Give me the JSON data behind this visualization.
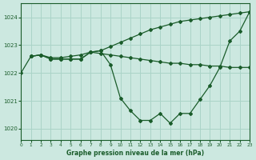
{
  "title": "Graphe pression niveau de la mer (hPa)",
  "background_color": "#cce8e0",
  "grid_color": "#aad4c8",
  "line_color": "#1a5c2a",
  "xlim": [
    0,
    23
  ],
  "ylim": [
    1019.6,
    1024.5
  ],
  "yticks": [
    1020,
    1021,
    1022,
    1023,
    1024
  ],
  "xticks": [
    0,
    1,
    2,
    3,
    4,
    5,
    6,
    7,
    8,
    9,
    10,
    11,
    12,
    13,
    14,
    15,
    16,
    17,
    18,
    19,
    20,
    21,
    22,
    23
  ],
  "series": [
    {
      "x": [
        0,
        1,
        2,
        3,
        4,
        5,
        6,
        7,
        8,
        9,
        10,
        11,
        12,
        13,
        14,
        15,
        16,
        17,
        18,
        19,
        20,
        21,
        22,
        23
      ],
      "y": [
        1022.0,
        1022.6,
        1022.65,
        1022.5,
        1022.5,
        1022.5,
        1022.5,
        1022.75,
        1022.8,
        1022.3,
        1021.1,
        1020.65,
        1020.3,
        1020.3,
        1020.55,
        1020.2,
        1020.55,
        1020.55,
        1021.05,
        1021.55,
        1022.2,
        1023.15,
        1023.5,
        1024.2
      ]
    },
    {
      "x": [
        1,
        2,
        3,
        4,
        5,
        6,
        7,
        8,
        9,
        10,
        11,
        12,
        13,
        14,
        15,
        16,
        17,
        18,
        19,
        20,
        21,
        22,
        23
      ],
      "y": [
        1022.6,
        1022.65,
        1022.55,
        1022.55,
        1022.6,
        1022.65,
        1022.75,
        1022.8,
        1022.95,
        1023.1,
        1023.25,
        1023.4,
        1023.55,
        1023.65,
        1023.75,
        1023.85,
        1023.9,
        1023.95,
        1024.0,
        1024.05,
        1024.1,
        1024.15,
        1024.2
      ]
    },
    {
      "x": [
        1,
        2,
        3,
        4,
        5,
        6,
        7,
        8,
        9,
        10,
        11,
        12,
        13,
        14,
        15,
        16,
        17,
        18,
        19,
        20,
        21,
        22,
        23
      ],
      "y": [
        1022.6,
        1022.65,
        1022.5,
        1022.5,
        1022.5,
        1022.5,
        1022.75,
        1022.7,
        1022.65,
        1022.6,
        1022.55,
        1022.5,
        1022.45,
        1022.4,
        1022.35,
        1022.35,
        1022.3,
        1022.3,
        1022.25,
        1022.25,
        1022.2,
        1022.2,
        1022.2
      ]
    }
  ],
  "marker": "D",
  "markersize": 2.0,
  "linewidth": 0.9
}
